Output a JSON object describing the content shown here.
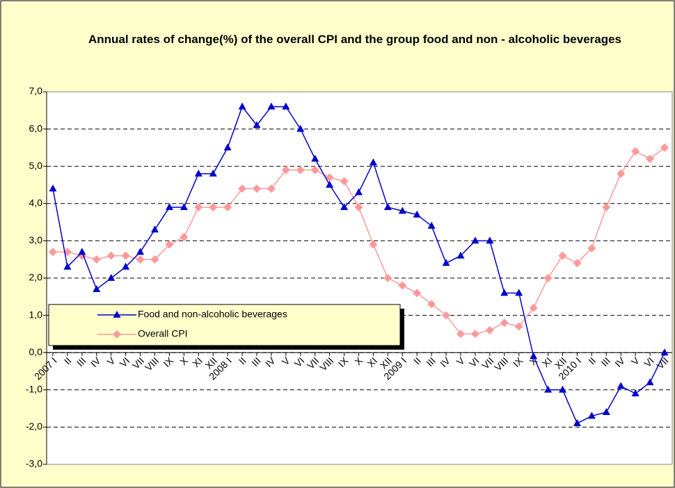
{
  "chart_data": {
    "type": "line",
    "title": "Annual rates of change(%) of the overall CPI and  the group food and non - alcoholic beverages",
    "categories": [
      "2007 I",
      "II",
      "III",
      "IV",
      "V",
      "VI",
      "VII",
      "VIII",
      "IX",
      "X",
      "XI",
      "XII",
      "2008 I",
      "II",
      "III",
      "IV",
      "V",
      "VI",
      "VII",
      "VIII",
      "IX",
      "X",
      "XI",
      "XII",
      "2009 I",
      "II",
      "III",
      "IV",
      "V",
      "VI",
      "VII",
      "VIII",
      "IX",
      "X",
      "XI",
      "XII",
      "2010 I",
      "II",
      "III",
      "IV",
      "V",
      "VI",
      "VII"
    ],
    "series": [
      {
        "name": "Food and non-alcoholic beverages",
        "color": "#0000cc",
        "marker": "triangle",
        "values": [
          4.4,
          2.3,
          2.7,
          1.7,
          2.0,
          2.3,
          2.7,
          3.3,
          3.9,
          3.9,
          4.8,
          4.8,
          5.5,
          6.6,
          6.1,
          6.6,
          6.6,
          6.0,
          5.2,
          4.5,
          3.9,
          4.3,
          5.1,
          3.9,
          3.8,
          3.7,
          3.4,
          2.4,
          2.6,
          3.0,
          3.0,
          1.6,
          1.6,
          -0.1,
          -1.0,
          -1.0,
          -1.9,
          -1.7,
          -1.6,
          -0.9,
          -1.1,
          -0.8,
          0.0
        ]
      },
      {
        "name": "Overall CPI",
        "color": "#ff9999",
        "marker": "diamond",
        "values": [
          2.7,
          2.7,
          2.6,
          2.5,
          2.6,
          2.6,
          2.5,
          2.5,
          2.9,
          3.1,
          3.9,
          3.9,
          3.9,
          4.4,
          4.4,
          4.4,
          4.9,
          4.9,
          4.9,
          4.7,
          4.6,
          3.9,
          2.9,
          2.0,
          1.8,
          1.6,
          1.3,
          1.0,
          0.5,
          0.5,
          0.6,
          0.8,
          0.7,
          1.2,
          2.0,
          2.6,
          2.4,
          2.8,
          3.9,
          4.8,
          5.4,
          5.2,
          5.5
        ]
      }
    ],
    "ylim": [
      -3,
      7
    ],
    "yticks": [
      {
        "value": -3,
        "label": "-3,0"
      },
      {
        "value": -2,
        "label": "-2,0"
      },
      {
        "value": -1,
        "label": "-1,0"
      },
      {
        "value": 0,
        "label": "0,0"
      },
      {
        "value": 1,
        "label": "1,0"
      },
      {
        "value": 2,
        "label": "2,0"
      },
      {
        "value": 3,
        "label": "3,0"
      },
      {
        "value": 4,
        "label": "4,0"
      },
      {
        "value": 5,
        "label": "5,0"
      },
      {
        "value": 6,
        "label": "6,0"
      },
      {
        "value": 7,
        "label": "7,0"
      }
    ],
    "grid": true,
    "legend_position": "lower-left"
  }
}
